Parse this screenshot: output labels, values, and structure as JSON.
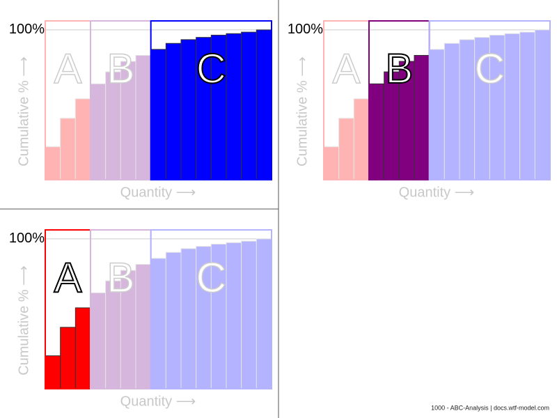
{
  "chart_data": [
    {
      "type": "bar",
      "ylabel": "Cumulative % ⟶",
      "xlabel": "Quantity ⟶",
      "highlight": "C",
      "categories": [
        null,
        null,
        null,
        null,
        null,
        null,
        null,
        null,
        null,
        null,
        null,
        null,
        null,
        null,
        null
      ],
      "ylim": [
        0,
        106
      ],
      "yticks": [
        {
          "value": 100,
          "label": "100%"
        }
      ],
      "series": [
        {
          "name": "A",
          "color": "#ffb3b3",
          "values": [
            22,
            41,
            54,
            null,
            null,
            null,
            null,
            null,
            null,
            null,
            null,
            null,
            null,
            null,
            null
          ]
        },
        {
          "name": "B",
          "color": "#d6b6dc",
          "values": [
            null,
            null,
            null,
            64,
            72,
            79,
            83,
            null,
            null,
            null,
            null,
            null,
            null,
            null,
            null
          ]
        },
        {
          "name": "C",
          "color": "#0000ff",
          "values": [
            null,
            null,
            null,
            null,
            null,
            null,
            null,
            87,
            91,
            93.5,
            95,
            96.5,
            97.5,
            98.5,
            100
          ]
        }
      ]
    },
    {
      "type": "bar",
      "ylabel": "Cumulative % ⟶",
      "xlabel": "Quantity ⟶",
      "highlight": "B",
      "categories": [
        null,
        null,
        null,
        null,
        null,
        null,
        null,
        null,
        null,
        null,
        null,
        null,
        null,
        null,
        null
      ],
      "ylim": [
        0,
        106
      ],
      "yticks": [
        {
          "value": 100,
          "label": "100%"
        }
      ],
      "series": [
        {
          "name": "A",
          "color": "#ffb3b3",
          "values": [
            22,
            41,
            54,
            null,
            null,
            null,
            null,
            null,
            null,
            null,
            null,
            null,
            null,
            null,
            null
          ]
        },
        {
          "name": "B",
          "color": "#800080",
          "values": [
            null,
            null,
            null,
            64,
            72,
            79,
            83,
            null,
            null,
            null,
            null,
            null,
            null,
            null,
            null
          ]
        },
        {
          "name": "C",
          "color": "#b3b3ff",
          "values": [
            null,
            null,
            null,
            null,
            null,
            null,
            null,
            87,
            91,
            93.5,
            95,
            96.5,
            97.5,
            98.5,
            100
          ]
        }
      ]
    },
    {
      "type": "bar",
      "ylabel": "Cumulative % ⟶",
      "xlabel": "Quantity ⟶",
      "highlight": "A",
      "categories": [
        null,
        null,
        null,
        null,
        null,
        null,
        null,
        null,
        null,
        null,
        null,
        null,
        null,
        null,
        null
      ],
      "ylim": [
        0,
        106
      ],
      "yticks": [
        {
          "value": 100,
          "label": "100%"
        }
      ],
      "series": [
        {
          "name": "A",
          "color": "#ff0000",
          "values": [
            22,
            41,
            54,
            null,
            null,
            null,
            null,
            null,
            null,
            null,
            null,
            null,
            null,
            null,
            null
          ]
        },
        {
          "name": "B",
          "color": "#d6b6dc",
          "values": [
            null,
            null,
            null,
            64,
            72,
            79,
            83,
            null,
            null,
            null,
            null,
            null,
            null,
            null,
            null
          ]
        },
        {
          "name": "C",
          "color": "#b3b3ff",
          "values": [
            null,
            null,
            null,
            null,
            null,
            null,
            null,
            87,
            91,
            93.5,
            95,
            96.5,
            97.5,
            98.5,
            100
          ]
        }
      ]
    }
  ],
  "footer": "1000 - ABC-Analysis | docs.wtf-model.com"
}
